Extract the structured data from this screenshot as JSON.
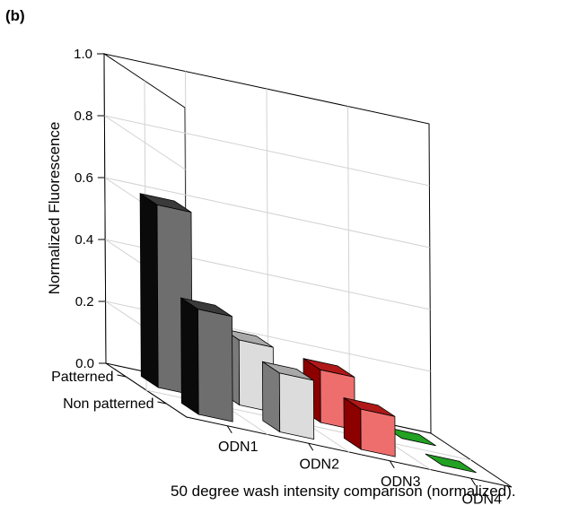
{
  "panel_label": "(b)",
  "caption": "50 degree wash intensity comparison (normalized).",
  "chart_data": {
    "type": "bar",
    "subtype": "3d-bar",
    "ylabel": "Normalized Fluorescence",
    "ylim": [
      0,
      1.0
    ],
    "yticks": [
      "0.0",
      "0.2",
      "0.4",
      "0.6",
      "0.8",
      "1.0"
    ],
    "categories": [
      "ODN1",
      "ODN2",
      "ODN3",
      "ODN4"
    ],
    "series": [
      {
        "name": "Patterned",
        "values": [
          0.59,
          0.21,
          0.17,
          0.0
        ]
      },
      {
        "name": "Non patterned",
        "values": [
          0.34,
          0.19,
          0.13,
          0.0
        ]
      }
    ],
    "grid": true,
    "colors": {
      "ODN1": {
        "front": "#6e6e6e",
        "side": "#0a0a0a",
        "top": "#3a3a3a"
      },
      "ODN2": {
        "front": "#dcdcdc",
        "side": "#7a7a7a",
        "top": "#a8a8a8"
      },
      "ODN3": {
        "front": "#ee6e6e",
        "side": "#8c0000",
        "top": "#b01818"
      },
      "ODN4": {
        "front": "#22a122",
        "side": "#107010",
        "top": "#1a8a1a"
      }
    }
  }
}
